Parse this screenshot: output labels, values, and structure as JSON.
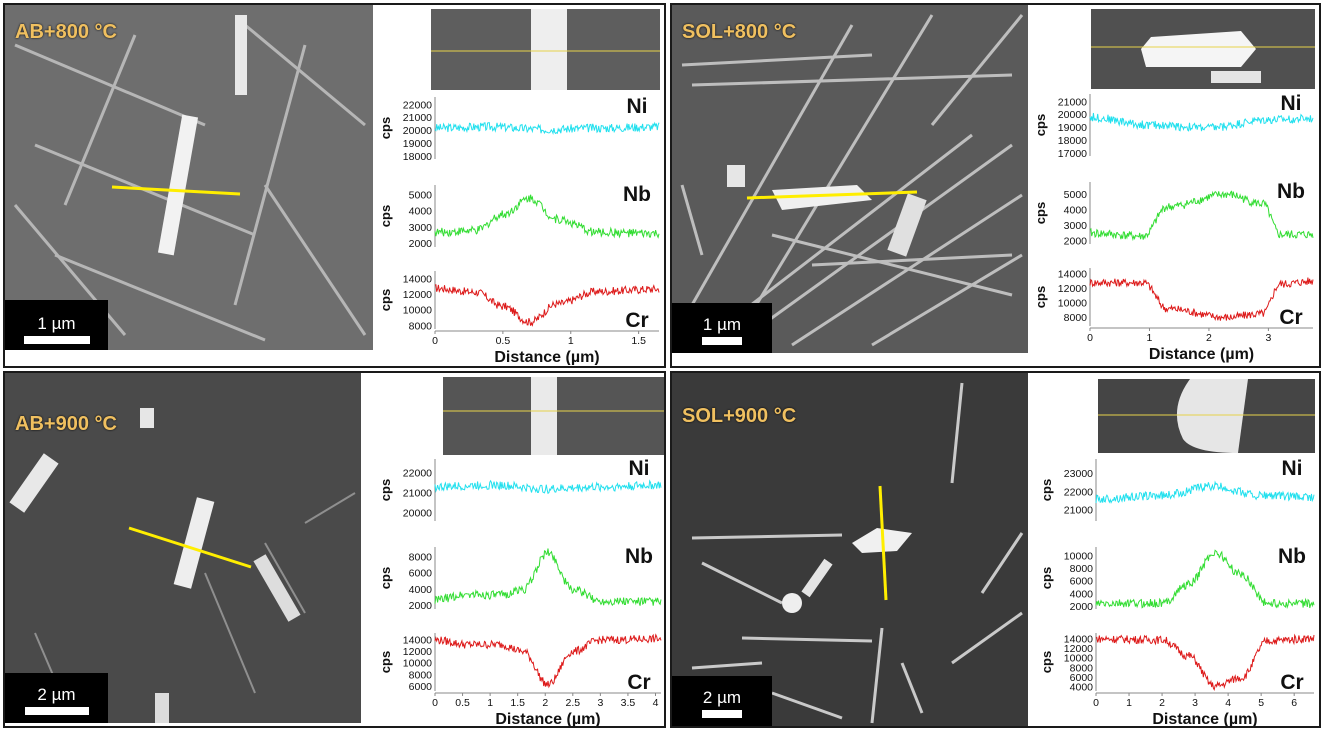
{
  "panels": [
    {
      "condition": "AB+800 °C",
      "scale_label": "1 µm",
      "x_label": "Distance (µm)",
      "y_unit": "cps",
      "x_ticks": [
        "0",
        "0.5",
        "1",
        "1.5"
      ],
      "x_tick_values": [
        0,
        0.5,
        1,
        1.5
      ],
      "x_max": 1.65,
      "profiles": [
        {
          "element": "Ni",
          "color": "#22e0ee",
          "ticks": [
            "22000",
            "21000",
            "20000",
            "19000",
            "18000"
          ],
          "tick_values": [
            22000,
            21000,
            20000,
            19000,
            18000
          ],
          "ylim": [
            17800,
            22600
          ]
        },
        {
          "element": "Nb",
          "color": "#33dd33",
          "ticks": [
            "5000",
            "4000",
            "3000",
            "2000"
          ],
          "tick_values": [
            5000,
            4000,
            3000,
            2000
          ],
          "ylim": [
            1800,
            5600
          ]
        },
        {
          "element": "Cr",
          "color": "#dd1a1a",
          "ticks": [
            "14000",
            "12000",
            "10000",
            "8000"
          ],
          "tick_values": [
            14000,
            12000,
            10000,
            8000
          ],
          "ylim": [
            7600,
            15000
          ]
        }
      ]
    },
    {
      "condition": "SOL+800 °C",
      "scale_label": "1 µm",
      "x_label": "Distance (µm)",
      "y_unit": "cps",
      "x_ticks": [
        "0",
        "1",
        "2",
        "3"
      ],
      "x_tick_values": [
        0,
        1,
        2,
        3
      ],
      "x_max": 3.75,
      "profiles": [
        {
          "element": "Ni",
          "color": "#22e0ee",
          "ticks": [
            "21000",
            "20000",
            "19000",
            "18000",
            "17000"
          ],
          "tick_values": [
            21000,
            20000,
            19000,
            18000,
            17000
          ],
          "ylim": [
            16800,
            21600
          ]
        },
        {
          "element": "Nb",
          "color": "#33dd33",
          "ticks": [
            "5000",
            "4000",
            "3000",
            "2000"
          ],
          "tick_values": [
            5000,
            4000,
            3000,
            2000
          ],
          "ylim": [
            1800,
            5800
          ]
        },
        {
          "element": "Cr",
          "color": "#dd1a1a",
          "ticks": [
            "14000",
            "12000",
            "10000",
            "8000"
          ],
          "tick_values": [
            14000,
            12000,
            10000,
            8000
          ],
          "ylim": [
            6800,
            14800
          ]
        }
      ]
    },
    {
      "condition": "AB+900 °C",
      "scale_label": "2 µm",
      "x_label": "Distance (µm)",
      "y_unit": "cps",
      "x_ticks": [
        "0",
        "0.5",
        "1",
        "1.5",
        "2",
        "2.5",
        "3",
        "3.5",
        "4"
      ],
      "x_tick_values": [
        0,
        0.5,
        1,
        1.5,
        2,
        2.5,
        3,
        3.5,
        4
      ],
      "x_max": 4.1,
      "profiles": [
        {
          "element": "Ni",
          "color": "#22e0ee",
          "ticks": [
            "22000",
            "21000",
            "20000"
          ],
          "tick_values": [
            22000,
            21000,
            20000
          ],
          "ylim": [
            19600,
            22700
          ]
        },
        {
          "element": "Nb",
          "color": "#33dd33",
          "ticks": [
            "8000",
            "6000",
            "4000",
            "2000"
          ],
          "tick_values": [
            8000,
            6000,
            4000,
            2000
          ],
          "ylim": [
            1600,
            9200
          ]
        },
        {
          "element": "Cr",
          "color": "#dd1a1a",
          "ticks": [
            "14000",
            "12000",
            "10000",
            "8000",
            "6000"
          ],
          "tick_values": [
            14000,
            12000,
            10000,
            8000,
            6000
          ],
          "ylim": [
            5200,
            15200
          ]
        }
      ]
    },
    {
      "condition": "SOL+900 °C",
      "scale_label": "2 µm",
      "x_label": "Distance (µm)",
      "y_unit": "cps",
      "x_ticks": [
        "0",
        "1",
        "2",
        "3",
        "4",
        "5",
        "6"
      ],
      "x_tick_values": [
        0,
        1,
        2,
        3,
        4,
        5,
        6
      ],
      "x_max": 6.6,
      "profiles": [
        {
          "element": "Ni",
          "color": "#22e0ee",
          "ticks": [
            "23000",
            "22000",
            "21000"
          ],
          "tick_values": [
            23000,
            22000,
            21000
          ],
          "ylim": [
            20400,
            23800
          ]
        },
        {
          "element": "Nb",
          "color": "#33dd33",
          "ticks": [
            "10000",
            "8000",
            "6000",
            "4000",
            "2000"
          ],
          "tick_values": [
            10000,
            8000,
            6000,
            4000,
            2000
          ],
          "ylim": [
            1600,
            11400
          ]
        },
        {
          "element": "Cr",
          "color": "#dd1a1a",
          "ticks": [
            "14000",
            "12000",
            "10000",
            "8000",
            "6000",
            "4000"
          ],
          "tick_values": [
            14000,
            12000,
            10000,
            8000,
            6000,
            4000
          ],
          "ylim": [
            3200,
            15200
          ]
        }
      ]
    }
  ],
  "chart_data": [
    {
      "type": "line",
      "x_max": 1.65,
      "series": [
        {
          "name": "Ni",
          "x": [
            0,
            0.4,
            0.8,
            1.2,
            1.65
          ],
          "values": [
            20200,
            20300,
            20100,
            20200,
            20300
          ]
        },
        {
          "name": "Nb",
          "x": [
            0,
            0.3,
            0.5,
            0.7,
            0.9,
            1.2,
            1.65
          ],
          "values": [
            2700,
            2800,
            3800,
            4800,
            3500,
            2700,
            2600
          ]
        },
        {
          "name": "Cr",
          "x": [
            0,
            0.3,
            0.5,
            0.7,
            0.9,
            1.2,
            1.65
          ],
          "values": [
            12800,
            12300,
            10500,
            8500,
            10800,
            12400,
            12700
          ]
        }
      ]
    },
    {
      "type": "line",
      "x_max": 3.75,
      "series": [
        {
          "name": "Ni",
          "x": [
            0,
            1,
            2,
            3,
            3.75
          ],
          "values": [
            19800,
            19200,
            19000,
            19600,
            19700
          ]
        },
        {
          "name": "Nb",
          "x": [
            0,
            0.9,
            1.3,
            2.3,
            2.9,
            3.2,
            3.75
          ],
          "values": [
            2500,
            2300,
            4200,
            5000,
            4400,
            2400,
            2400
          ]
        },
        {
          "name": "Cr",
          "x": [
            0,
            0.9,
            1.3,
            2.3,
            2.9,
            3.2,
            3.75
          ],
          "values": [
            12800,
            12800,
            9200,
            8000,
            8500,
            12600,
            13000
          ]
        }
      ]
    },
    {
      "type": "line",
      "x_max": 4.1,
      "series": [
        {
          "name": "Ni",
          "x": [
            0,
            1,
            2,
            3,
            4.1
          ],
          "values": [
            21300,
            21400,
            21200,
            21300,
            21400
          ]
        },
        {
          "name": "Nb",
          "x": [
            0,
            0.6,
            1.2,
            1.6,
            2.05,
            2.5,
            3,
            4.1
          ],
          "values": [
            2700,
            3400,
            3300,
            4000,
            8500,
            4000,
            2600,
            2500
          ]
        },
        {
          "name": "Cr",
          "x": [
            0,
            0.6,
            1.2,
            1.6,
            2.05,
            2.5,
            3,
            4.1
          ],
          "values": [
            14000,
            13200,
            13200,
            12000,
            6300,
            12000,
            14000,
            14200
          ]
        }
      ]
    },
    {
      "type": "line",
      "x_max": 6.6,
      "series": [
        {
          "name": "Ni",
          "x": [
            0,
            2,
            3.5,
            5,
            6.6
          ],
          "values": [
            21600,
            21800,
            22300,
            21800,
            21700
          ]
        },
        {
          "name": "Nb",
          "x": [
            0,
            2,
            2.8,
            3.6,
            4.4,
            5.2,
            6.6
          ],
          "values": [
            2400,
            2500,
            5500,
            10500,
            7000,
            2500,
            2400
          ]
        },
        {
          "name": "Cr",
          "x": [
            0,
            2,
            2.8,
            3.6,
            4.4,
            5.2,
            6.6
          ],
          "values": [
            14000,
            13800,
            10500,
            4200,
            6000,
            13600,
            14100
          ]
        }
      ]
    }
  ]
}
